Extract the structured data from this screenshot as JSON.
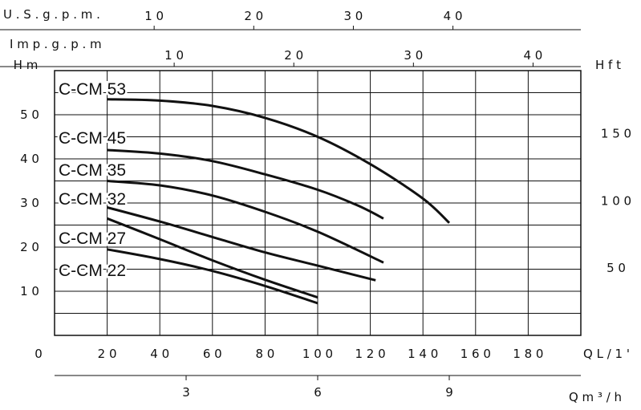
{
  "chart_data": {
    "type": "line",
    "title": "",
    "top_axes": [
      {
        "label": "U.S.g.p.m.",
        "ticks": [
          10,
          20,
          30,
          40
        ]
      },
      {
        "label": "Imp.g.p.m",
        "ticks": [
          10,
          20,
          30,
          40
        ]
      }
    ],
    "x": {
      "label": "Q L/1'",
      "ticks": [
        20,
        40,
        60,
        80,
        100,
        120,
        140,
        160,
        180
      ],
      "origin_label": "0",
      "range": [
        0,
        200
      ]
    },
    "x2": {
      "label": "Q m³/h",
      "ticks": [
        3,
        6,
        9
      ]
    },
    "y": {
      "label": "Hm",
      "ticks": [
        10,
        20,
        30,
        40,
        50
      ],
      "range": [
        0,
        60
      ]
    },
    "y2": {
      "label": "H ft",
      "ticks": [
        50,
        100,
        150
      ]
    },
    "grid": true,
    "series": [
      {
        "name": "C-CM 53",
        "points": [
          [
            20,
            53.5
          ],
          [
            40,
            53.2
          ],
          [
            60,
            52
          ],
          [
            80,
            49.3
          ],
          [
            100,
            45
          ],
          [
            120,
            38.8
          ],
          [
            140,
            31
          ],
          [
            150,
            25.5
          ]
        ]
      },
      {
        "name": "C-CM 45",
        "points": [
          [
            20,
            42
          ],
          [
            40,
            41.2
          ],
          [
            60,
            39.5
          ],
          [
            80,
            36.5
          ],
          [
            100,
            33
          ],
          [
            115,
            29.5
          ],
          [
            125,
            26.5
          ]
        ]
      },
      {
        "name": "C-CM 35",
        "points": [
          [
            20,
            35
          ],
          [
            40,
            34
          ],
          [
            60,
            31.7
          ],
          [
            80,
            28
          ],
          [
            100,
            23.5
          ],
          [
            125,
            16.5
          ]
        ]
      },
      {
        "name": "C-CM 32",
        "points": [
          [
            20,
            29
          ],
          [
            40,
            25.8
          ],
          [
            60,
            22.3
          ],
          [
            80,
            18.8
          ],
          [
            100,
            15.8
          ],
          [
            122,
            12.5
          ]
        ]
      },
      {
        "name": "C-CM 27",
        "points": [
          [
            20,
            26.5
          ],
          [
            40,
            21.8
          ],
          [
            60,
            17
          ],
          [
            80,
            12.6
          ],
          [
            100,
            8.6
          ]
        ]
      },
      {
        "name": "C-CM 22",
        "points": [
          [
            20,
            19.5
          ],
          [
            40,
            17.3
          ],
          [
            60,
            14.6
          ],
          [
            80,
            11.2
          ],
          [
            100,
            7.3
          ]
        ]
      }
    ]
  }
}
